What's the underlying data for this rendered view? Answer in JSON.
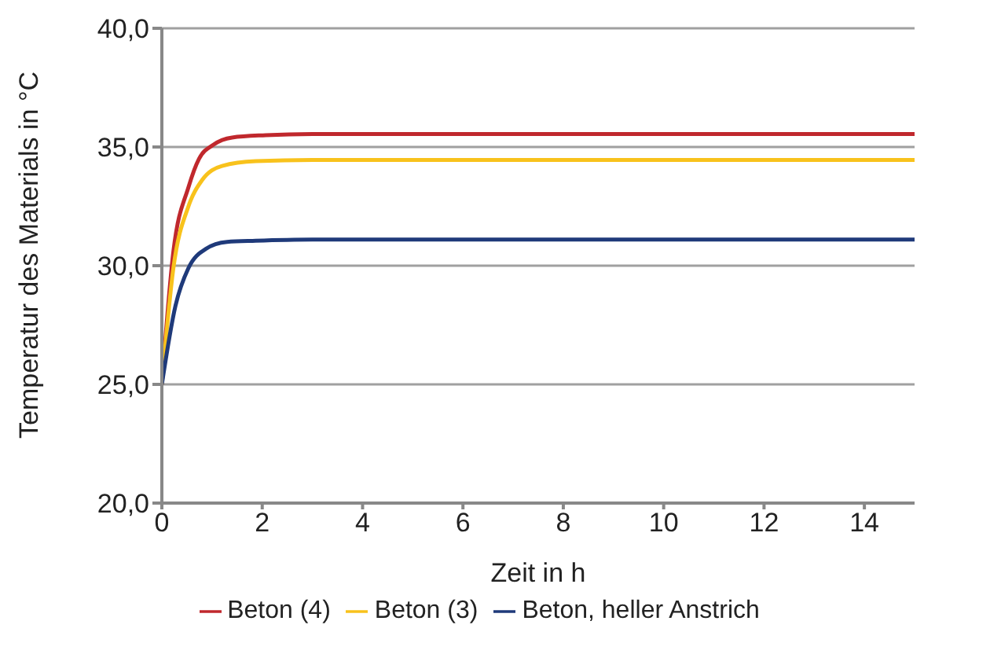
{
  "chart_data": {
    "type": "line",
    "xlabel": "Zeit in h",
    "ylabel": "Temperatur des Materials in °C",
    "xlim": [
      0,
      15
    ],
    "xticks": [
      0,
      2,
      4,
      6,
      8,
      10,
      12,
      14
    ],
    "ylim": [
      20,
      40
    ],
    "yticks": [
      {
        "value": 20,
        "label": "20,0"
      },
      {
        "value": 25,
        "label": "25,0"
      },
      {
        "value": 30,
        "label": "30,0"
      },
      {
        "value": 35,
        "label": "35,0"
      },
      {
        "value": 40,
        "label": "40,0"
      }
    ],
    "grid": "y",
    "legend": "bottom",
    "marker": "none",
    "series": [
      {
        "name": "Beton (4)",
        "color": "#c0282d",
        "x": [
          0,
          0.23,
          0.53,
          0.74,
          1.03,
          1.4,
          2.07,
          3,
          15
        ],
        "values": [
          25,
          30.6,
          33.3,
          34.5,
          35.1,
          35.4,
          35.5,
          35.55,
          35.55
        ]
      },
      {
        "name": "Beton (3)",
        "color": "#f8c21c",
        "x": [
          0,
          0.23,
          0.53,
          0.8,
          1.2,
          1.87,
          3,
          15
        ],
        "values": [
          25,
          29.9,
          32.5,
          33.6,
          34.2,
          34.4,
          34.45,
          34.45
        ]
      },
      {
        "name": "Beton, heller Anstrich",
        "color": "#1f3a7a",
        "x": [
          0,
          0.27,
          0.53,
          0.87,
          1.3,
          1.87,
          3,
          15
        ],
        "values": [
          25,
          28.3,
          29.9,
          30.7,
          31.0,
          31.05,
          31.1,
          31.1
        ]
      }
    ]
  }
}
